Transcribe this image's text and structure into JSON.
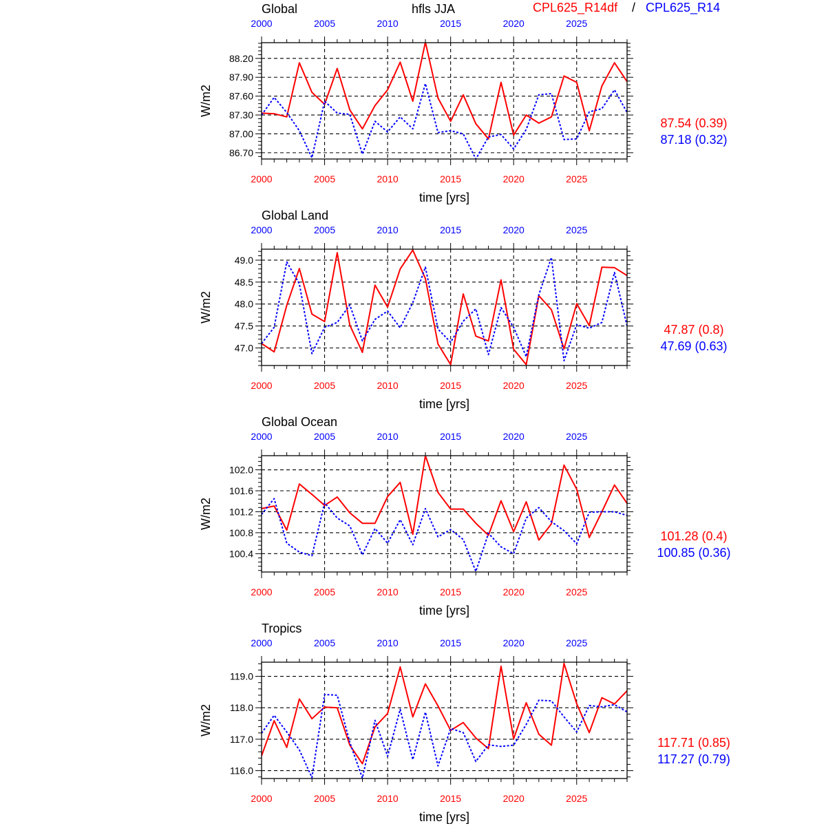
{
  "header": {
    "variable": "hfls JJA",
    "run_a": "CPL625_R14df",
    "separator": "/",
    "run_b": "CPL625_R14"
  },
  "colors": {
    "run_a": "#ff0000",
    "run_b": "#0000ff",
    "axis": "#000000"
  },
  "chart_data": [
    {
      "type": "line",
      "title": "Global",
      "xlabel": "time [yrs]",
      "ylabel": "W/m2",
      "xlim": [
        2000,
        2029
      ],
      "xticks": [
        2000,
        2005,
        2010,
        2015,
        2020,
        2025
      ],
      "xtick_labels": [
        "2000",
        "2005",
        "2010",
        "2015",
        "2020",
        "2025"
      ],
      "ylim": [
        86.6,
        88.45
      ],
      "yticks": [
        86.7,
        87.0,
        87.3,
        87.6,
        87.9,
        88.2
      ],
      "ytick_labels": [
        "86.70",
        "87.00",
        "87.30",
        "87.60",
        "87.90",
        "88.20"
      ],
      "grid": true,
      "x": [
        2000,
        2001,
        2002,
        2003,
        2004,
        2005,
        2006,
        2007,
        2008,
        2009,
        2010,
        2011,
        2012,
        2013,
        2014,
        2015,
        2016,
        2017,
        2018,
        2019,
        2020,
        2021,
        2022,
        2023,
        2024,
        2025,
        2026,
        2027,
        2028,
        2029
      ],
      "series": [
        {
          "name": "CPL625_R14df",
          "style": "solid",
          "stat": "87.54 (0.39)",
          "values": [
            87.33,
            87.32,
            87.27,
            88.13,
            87.66,
            87.47,
            88.04,
            87.38,
            87.08,
            87.45,
            87.7,
            88.14,
            87.52,
            88.46,
            87.57,
            87.2,
            87.62,
            87.16,
            86.92,
            87.82,
            86.98,
            87.3,
            87.17,
            87.27,
            87.92,
            87.82,
            87.05,
            87.76,
            88.13,
            87.83
          ]
        },
        {
          "name": "CPL625_R14",
          "style": "dotted",
          "stat": "87.18 (0.32)",
          "values": [
            87.3,
            87.58,
            87.34,
            87.05,
            86.62,
            87.52,
            87.33,
            87.31,
            86.68,
            87.2,
            87.03,
            87.27,
            87.08,
            87.8,
            87.02,
            87.05,
            87.0,
            86.6,
            86.95,
            86.99,
            86.76,
            87.07,
            87.62,
            87.64,
            86.91,
            86.92,
            87.35,
            87.4,
            87.7,
            87.34
          ]
        }
      ]
    },
    {
      "type": "line",
      "title": "Global Land",
      "xlabel": "time [yrs]",
      "ylabel": "W/m2",
      "xlim": [
        2000,
        2029
      ],
      "xticks": [
        2000,
        2005,
        2010,
        2015,
        2020,
        2025
      ],
      "xtick_labels": [
        "2000",
        "2005",
        "2010",
        "2015",
        "2020",
        "2025"
      ],
      "ylim": [
        46.6,
        49.25
      ],
      "yticks": [
        47.0,
        47.5,
        48.0,
        48.5,
        49.0
      ],
      "ytick_labels": [
        "47.0",
        "47.5",
        "48.0",
        "48.5",
        "49.0"
      ],
      "grid": true,
      "x": [
        2000,
        2001,
        2002,
        2003,
        2004,
        2005,
        2006,
        2007,
        2008,
        2009,
        2010,
        2011,
        2012,
        2013,
        2014,
        2015,
        2016,
        2017,
        2018,
        2019,
        2020,
        2021,
        2022,
        2023,
        2024,
        2025,
        2026,
        2027,
        2028,
        2029
      ],
      "series": [
        {
          "name": "CPL625_R14df",
          "style": "solid",
          "stat": "47.87 (0.8)",
          "values": [
            47.1,
            46.91,
            47.97,
            48.81,
            47.77,
            47.6,
            49.17,
            47.52,
            46.9,
            48.43,
            47.93,
            48.8,
            49.23,
            48.58,
            47.09,
            46.62,
            48.23,
            47.27,
            47.16,
            48.55,
            46.97,
            46.62,
            48.19,
            47.87,
            46.98,
            48.01,
            47.51,
            48.84,
            48.83,
            48.65
          ]
        },
        {
          "name": "CPL625_R14",
          "style": "dotted",
          "stat": "47.69 (0.63)",
          "values": [
            47.1,
            47.47,
            48.96,
            48.46,
            46.87,
            47.47,
            47.58,
            47.98,
            47.16,
            47.65,
            47.84,
            47.46,
            48.03,
            48.84,
            47.43,
            47.13,
            47.61,
            47.89,
            46.85,
            47.92,
            47.47,
            46.8,
            48.21,
            49.06,
            46.71,
            47.53,
            47.45,
            47.58,
            48.72,
            47.5
          ]
        }
      ]
    },
    {
      "type": "line",
      "title": "Global Ocean",
      "xlabel": "time [yrs]",
      "ylabel": "W/m2",
      "xlim": [
        2000,
        2029
      ],
      "xticks": [
        2000,
        2005,
        2010,
        2015,
        2020,
        2025
      ],
      "xtick_labels": [
        "2000",
        "2005",
        "2010",
        "2015",
        "2020",
        "2025"
      ],
      "ylim": [
        100.05,
        102.27
      ],
      "yticks": [
        100.4,
        100.8,
        101.2,
        101.6,
        102.0
      ],
      "ytick_labels": [
        "100.4",
        "100.8",
        "101.2",
        "101.6",
        "102.0"
      ],
      "grid": true,
      "x": [
        2000,
        2001,
        2002,
        2003,
        2004,
        2005,
        2006,
        2007,
        2008,
        2009,
        2010,
        2011,
        2012,
        2013,
        2014,
        2015,
        2016,
        2017,
        2018,
        2019,
        2020,
        2021,
        2022,
        2023,
        2024,
        2025,
        2026,
        2027,
        2028,
        2029
      ],
      "series": [
        {
          "name": "CPL625_R14df",
          "style": "solid",
          "stat": "101.28 (0.4)",
          "values": [
            101.26,
            101.31,
            100.85,
            101.73,
            101.53,
            101.32,
            101.48,
            101.18,
            100.98,
            100.98,
            101.49,
            101.76,
            100.77,
            102.27,
            101.57,
            101.25,
            101.25,
            100.98,
            100.75,
            101.41,
            100.82,
            101.39,
            100.66,
            100.97,
            102.09,
            101.63,
            100.71,
            101.2,
            101.71,
            101.36
          ]
        },
        {
          "name": "CPL625_R14",
          "style": "dotted",
          "stat": "100.85 (0.36)",
          "values": [
            101.15,
            101.45,
            100.6,
            100.43,
            100.36,
            101.37,
            101.08,
            100.93,
            100.38,
            100.88,
            100.6,
            101.05,
            100.57,
            101.26,
            100.72,
            100.86,
            100.67,
            100.06,
            100.79,
            100.53,
            100.4,
            101.08,
            101.28,
            101.01,
            100.84,
            100.59,
            101.19,
            101.2,
            101.2,
            101.13
          ]
        }
      ]
    },
    {
      "type": "line",
      "title": "Tropics",
      "xlabel": "time [yrs]",
      "ylabel": "W/m2",
      "xlim": [
        2000,
        2029
      ],
      "xticks": [
        2000,
        2005,
        2010,
        2015,
        2020,
        2025
      ],
      "xtick_labels": [
        "2000",
        "2005",
        "2010",
        "2015",
        "2020",
        "2025"
      ],
      "ylim": [
        115.75,
        119.45
      ],
      "yticks": [
        116.0,
        117.0,
        118.0,
        119.0
      ],
      "ytick_labels": [
        "116.0",
        "117.0",
        "118.0",
        "119.0"
      ],
      "grid": true,
      "x": [
        2000,
        2001,
        2002,
        2003,
        2004,
        2005,
        2006,
        2007,
        2008,
        2009,
        2010,
        2011,
        2012,
        2013,
        2014,
        2015,
        2016,
        2017,
        2018,
        2019,
        2020,
        2021,
        2022,
        2023,
        2024,
        2025,
        2026,
        2027,
        2028,
        2029
      ],
      "series": [
        {
          "name": "CPL625_R14df",
          "style": "solid",
          "stat": "117.71 (0.85)",
          "values": [
            116.47,
            117.59,
            116.74,
            118.28,
            117.65,
            118.02,
            118.0,
            116.81,
            116.22,
            117.39,
            117.82,
            119.3,
            117.71,
            118.76,
            118.06,
            117.28,
            117.53,
            117.04,
            116.7,
            119.32,
            117.01,
            118.16,
            117.16,
            116.81,
            119.41,
            118.13,
            117.21,
            118.32,
            118.12,
            118.54
          ]
        },
        {
          "name": "CPL625_R14",
          "style": "dotted",
          "stat": "117.27 (0.79)",
          "values": [
            117.19,
            117.76,
            117.23,
            116.66,
            115.78,
            118.42,
            118.4,
            116.9,
            115.76,
            117.6,
            116.46,
            117.95,
            116.35,
            117.86,
            116.15,
            117.34,
            117.21,
            116.29,
            116.82,
            116.77,
            116.81,
            117.47,
            118.24,
            118.22,
            117.71,
            117.23,
            118.07,
            118.03,
            118.1,
            117.87
          ]
        }
      ]
    }
  ]
}
